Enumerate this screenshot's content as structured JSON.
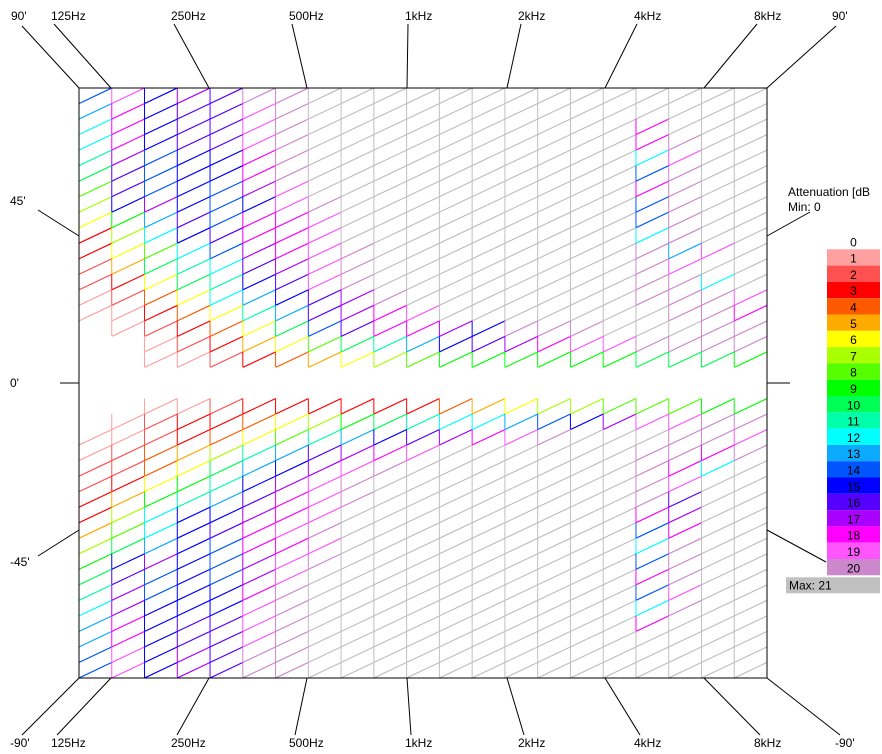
{
  "chart_data": {
    "type": "heatmap",
    "title": "",
    "xlabel": "",
    "ylabel": "",
    "x_axis": {
      "scale": "log2",
      "ticks": [
        "125Hz",
        "250Hz",
        "500Hz",
        "1kHz",
        "2kHz",
        "4kHz",
        "8kHz"
      ],
      "end_labels": [
        "90'",
        "90'"
      ],
      "bottom_end_labels": [
        "-90'",
        "-90'"
      ]
    },
    "y_axis": {
      "range_degrees": [
        -90,
        90
      ],
      "ticks": [
        "45'",
        "0'",
        "-45'"
      ]
    },
    "grid": {
      "columns": 21,
      "rows_per_half": 19,
      "cell_pattern": "diagonal"
    },
    "legend": {
      "title": "Attenuation [dB",
      "min_label": "Min:",
      "min_value": "0",
      "max_label": "Max:",
      "max_value": "21",
      "position": "right",
      "levels": [
        "0",
        "1",
        "2",
        "3",
        "4",
        "5",
        "6",
        "7",
        "8",
        "9",
        "10",
        "11",
        "12",
        "13",
        "14",
        "15",
        "16",
        "17",
        "18",
        "19",
        "20"
      ],
      "colors": [
        "#ffffff",
        "#ffa0a0",
        "#ff5050",
        "#ff0000",
        "#ff5a00",
        "#ffaa00",
        "#ffff00",
        "#aaff00",
        "#55ff00",
        "#00ff00",
        "#00ff55",
        "#00ffaa",
        "#00ffff",
        "#0aaaff",
        "#0055ff",
        "#0000ff",
        "#5500ff",
        "#aa00ff",
        "#ff00ff",
        "#ff55ff",
        "#cc88cc"
      ],
      "max_color": "#c0c0c0",
      "beyond_color": "#000000"
    },
    "upper_half_values": [
      [
        14,
        19,
        15,
        17,
        16,
        20,
        20,
        21,
        21,
        21,
        21,
        21,
        21,
        21,
        21,
        21,
        21,
        21,
        21,
        21,
        21
      ],
      [
        13,
        18,
        15,
        16,
        16,
        19,
        20,
        21,
        21,
        21,
        21,
        21,
        21,
        21,
        21,
        21,
        21,
        21,
        21,
        21,
        21
      ],
      [
        12,
        18,
        15,
        16,
        16,
        19,
        20,
        21,
        21,
        21,
        21,
        21,
        21,
        21,
        21,
        21,
        21,
        18,
        21,
        21,
        21
      ],
      [
        12,
        18,
        15,
        16,
        16,
        19,
        20,
        21,
        21,
        21,
        21,
        21,
        21,
        21,
        21,
        21,
        21,
        18,
        20,
        21,
        21
      ],
      [
        11,
        17,
        14,
        15,
        15,
        18,
        20,
        21,
        21,
        21,
        21,
        21,
        21,
        21,
        21,
        21,
        21,
        12,
        19,
        21,
        21
      ],
      [
        10,
        16,
        14,
        15,
        15,
        18,
        20,
        21,
        21,
        21,
        21,
        21,
        21,
        21,
        21,
        21,
        21,
        14,
        20,
        21,
        21
      ],
      [
        8,
        16,
        14,
        15,
        14,
        17,
        19,
        21,
        21,
        21,
        21,
        21,
        21,
        21,
        21,
        21,
        21,
        18,
        20,
        21,
        21
      ],
      [
        7,
        15,
        17,
        15,
        14,
        15,
        19,
        20,
        21,
        21,
        21,
        21,
        21,
        21,
        21,
        21,
        21,
        14,
        20,
        21,
        21
      ],
      [
        6,
        9,
        13,
        16,
        14,
        18,
        18,
        19,
        21,
        21,
        21,
        21,
        21,
        21,
        21,
        21,
        21,
        14,
        20,
        21,
        21
      ],
      [
        3,
        7,
        12,
        15,
        16,
        18,
        18,
        19,
        21,
        21,
        21,
        21,
        21,
        21,
        21,
        21,
        21,
        12,
        20,
        21,
        21
      ],
      [
        3,
        6,
        8,
        12,
        14,
        17,
        18,
        19,
        20,
        21,
        21,
        21,
        21,
        21,
        21,
        21,
        21,
        20,
        13,
        19,
        21
      ],
      [
        2,
        5,
        10,
        11,
        12,
        16,
        17,
        19,
        20,
        21,
        21,
        21,
        21,
        21,
        21,
        21,
        21,
        20,
        19,
        21,
        21
      ],
      [
        2,
        3,
        6,
        10,
        11,
        15,
        16,
        19,
        20,
        21,
        21,
        21,
        21,
        21,
        21,
        21,
        21,
        20,
        20,
        12,
        21
      ],
      [
        1,
        2,
        4,
        6,
        12,
        13,
        15,
        16,
        17,
        20,
        21,
        21,
        21,
        21,
        21,
        21,
        21,
        20,
        20,
        20,
        19
      ],
      [
        1,
        1,
        3,
        4,
        6,
        11,
        13,
        16,
        17,
        18,
        19,
        21,
        21,
        21,
        21,
        21,
        21,
        21,
        20,
        20,
        18
      ],
      [
        0,
        1,
        2,
        3,
        4,
        6,
        10,
        14,
        16,
        18,
        18,
        17,
        15,
        20,
        20,
        20,
        21,
        21,
        21,
        20,
        20
      ],
      [
        0,
        0,
        1,
        2,
        3,
        5,
        6,
        8,
        10,
        11,
        13,
        15,
        16,
        17,
        18,
        19,
        19,
        20,
        20,
        20,
        20
      ],
      [
        0,
        0,
        1,
        1,
        2,
        3,
        4,
        5,
        6,
        7,
        8,
        9,
        9,
        9,
        9,
        9,
        9,
        10,
        10,
        10,
        9
      ],
      [
        0,
        0,
        0,
        0,
        0,
        0,
        0,
        0,
        0,
        0,
        0,
        0,
        0,
        0,
        0,
        0,
        0,
        0,
        0,
        0,
        0
      ]
    ],
    "lower_half_values": [
      [
        0,
        0,
        0,
        0,
        0,
        0,
        0,
        0,
        0,
        0,
        0,
        0,
        0,
        0,
        0,
        0,
        0,
        0,
        0,
        0,
        0
      ],
      [
        0,
        0,
        1,
        1,
        2,
        3,
        3,
        3,
        3,
        3,
        3,
        4,
        5,
        6,
        7,
        7,
        8,
        8,
        8,
        9,
        9
      ],
      [
        0,
        1,
        2,
        3,
        3,
        4,
        6,
        7,
        9,
        10,
        11,
        12,
        12,
        13,
        14,
        15,
        17,
        19,
        19,
        20,
        20
      ],
      [
        1,
        1,
        2,
        3,
        4,
        6,
        8,
        11,
        13,
        15,
        16,
        17,
        18,
        19,
        20,
        21,
        21,
        21,
        20,
        20,
        19
      ],
      [
        1,
        2,
        4,
        5,
        7,
        11,
        13,
        16,
        17,
        18,
        19,
        21,
        21,
        21,
        21,
        21,
        21,
        20,
        20,
        18,
        20
      ],
      [
        2,
        2,
        4,
        6,
        10,
        13,
        15,
        17,
        19,
        20,
        21,
        21,
        21,
        21,
        21,
        21,
        21,
        20,
        18,
        12,
        21
      ],
      [
        2,
        3,
        6,
        9,
        11,
        15,
        17,
        19,
        20,
        21,
        21,
        21,
        21,
        21,
        21,
        21,
        21,
        20,
        19,
        21,
        21
      ],
      [
        3,
        5,
        9,
        11,
        13,
        16,
        18,
        19,
        20,
        21,
        21,
        21,
        21,
        21,
        21,
        21,
        21,
        20,
        16,
        21,
        21
      ],
      [
        3,
        7,
        12,
        15,
        15,
        17,
        18,
        19,
        21,
        21,
        21,
        21,
        21,
        21,
        21,
        21,
        21,
        18,
        17,
        21,
        21
      ],
      [
        5,
        8,
        12,
        15,
        16,
        18,
        19,
        20,
        21,
        21,
        21,
        21,
        21,
        21,
        21,
        21,
        21,
        14,
        18,
        21,
        21
      ],
      [
        7,
        10,
        13,
        15,
        14,
        18,
        18,
        19,
        21,
        21,
        21,
        21,
        21,
        21,
        21,
        21,
        21,
        12,
        20,
        21,
        21
      ],
      [
        9,
        15,
        17,
        15,
        14,
        17,
        19,
        20,
        21,
        21,
        21,
        21,
        21,
        21,
        21,
        21,
        21,
        14,
        20,
        21,
        21
      ],
      [
        10,
        16,
        14,
        15,
        14,
        17,
        19,
        21,
        21,
        21,
        21,
        21,
        21,
        21,
        21,
        21,
        21,
        18,
        20,
        21,
        21
      ],
      [
        11,
        17,
        14,
        15,
        15,
        18,
        20,
        21,
        21,
        21,
        21,
        21,
        21,
        21,
        21,
        21,
        21,
        14,
        19,
        21,
        21
      ],
      [
        12,
        17,
        15,
        15,
        15,
        19,
        20,
        21,
        21,
        21,
        21,
        21,
        21,
        21,
        21,
        21,
        21,
        12,
        20,
        21,
        21
      ],
      [
        13,
        18,
        15,
        16,
        16,
        19,
        20,
        21,
        21,
        21,
        21,
        21,
        21,
        21,
        21,
        21,
        21,
        18,
        21,
        21,
        21
      ],
      [
        13,
        18,
        15,
        16,
        16,
        19,
        20,
        21,
        21,
        21,
        21,
        21,
        21,
        21,
        21,
        21,
        21,
        21,
        21,
        21,
        21
      ],
      [
        14,
        19,
        15,
        17,
        16,
        20,
        20,
        21,
        21,
        21,
        21,
        21,
        21,
        21,
        21,
        21,
        21,
        21,
        21,
        21,
        21
      ],
      [
        14,
        19,
        15,
        17,
        16,
        20,
        20,
        21,
        21,
        21,
        21,
        21,
        21,
        21,
        21,
        21,
        21,
        21,
        21,
        21,
        21
      ]
    ]
  }
}
